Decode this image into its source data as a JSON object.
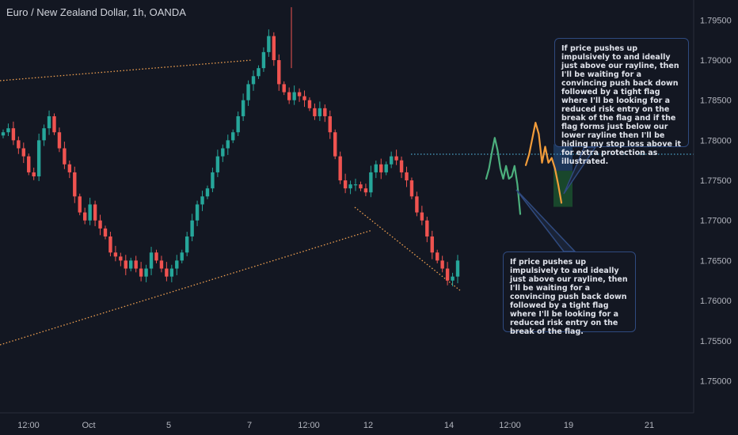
{
  "header": {
    "title": "Euro / New Zealand Dollar, 1h, OANDA"
  },
  "price_axis": {
    "labels": [
      "1.79500",
      "1.79000",
      "1.78500",
      "1.78000",
      "1.77500",
      "1.77000",
      "1.76500",
      "1.76000",
      "1.75500",
      "1.75000"
    ]
  },
  "time_axis": {
    "labels": [
      "12:00",
      "Oct",
      "5",
      "7",
      "12:00",
      "12",
      "14",
      "12:00",
      "19",
      "21"
    ]
  },
  "annotations": {
    "right_callout": "If price pushes up impulsively to and ideally just above our rayline, then I'll be waiting for a convincing push back down followed by a tight flag where I'll be looking for a reduced risk entry on the break of the flag and if the flag forms just below our lower rayline then I'll be hiding my stop loss above it for extra protection as illustrated.",
    "bottom_callout": "If price pushes up impulsively to and ideally just above our rayline, then I'll be waiting for a convincing push back down followed by a tight flag where I'll be looking for a reduced risk entry on the break of the flag."
  },
  "colors": {
    "background": "#131722",
    "bull": "#26a69a",
    "bear": "#ef5350",
    "rayline_dotted": "#f0a050",
    "projection_green": "#4caf7d",
    "projection_orange": "#f29c3a",
    "risk_zone": "#1e3a5f",
    "reward_zone": "#1b4d2e",
    "callout_border": "#2f4a7f"
  },
  "chart_data": {
    "type": "candlestick",
    "symbol": "Euro / New Zealand Dollar",
    "timeframe": "1h",
    "source": "OANDA",
    "y_range": [
      1.746,
      1.7975
    ],
    "rayline_level": 1.7795,
    "closes": [
      1.781,
      1.7815,
      1.78,
      1.779,
      1.778,
      1.776,
      1.7755,
      1.78,
      1.7815,
      1.783,
      1.781,
      1.779,
      1.777,
      1.776,
      1.773,
      1.771,
      1.77,
      1.772,
      1.77,
      1.769,
      1.768,
      1.766,
      1.7655,
      1.765,
      1.764,
      1.765,
      1.764,
      1.763,
      1.764,
      1.766,
      1.765,
      1.764,
      1.763,
      1.764,
      1.765,
      1.766,
      1.768,
      1.77,
      1.772,
      1.773,
      1.774,
      1.776,
      1.778,
      1.779,
      1.78,
      1.781,
      1.783,
      1.785,
      1.787,
      1.788,
      1.789,
      1.791,
      1.793,
      1.79,
      1.787,
      1.786,
      1.785,
      1.786,
      1.7855,
      1.785,
      1.784,
      1.783,
      1.784,
      1.783,
      1.781,
      1.778,
      1.775,
      1.774,
      1.7745,
      1.7745,
      1.774,
      1.7735,
      1.776,
      1.777,
      1.776,
      1.777,
      1.778,
      1.7775,
      1.776,
      1.775,
      1.773,
      1.771,
      1.77,
      1.768,
      1.766,
      1.765,
      1.764,
      1.7625,
      1.763,
      1.765
    ],
    "projection_green": [
      1.7752,
      1.7765,
      1.7785,
      1.7803,
      1.7788,
      1.7765,
      1.7752,
      1.7768,
      1.7752,
      1.7755,
      1.7768,
      1.7745,
      1.7708
    ],
    "projection_orange": [
      1.7769,
      1.7782,
      1.7802,
      1.7822,
      1.7808,
      1.7772,
      1.7792,
      1.7772,
      1.7778,
      1.7765,
      1.7745,
      1.7722
    ],
    "risk_zone": {
      "top": 1.7795,
      "bottom": 1.7762
    },
    "reward_zone": {
      "top": 1.7762,
      "bottom": 1.7717
    }
  }
}
